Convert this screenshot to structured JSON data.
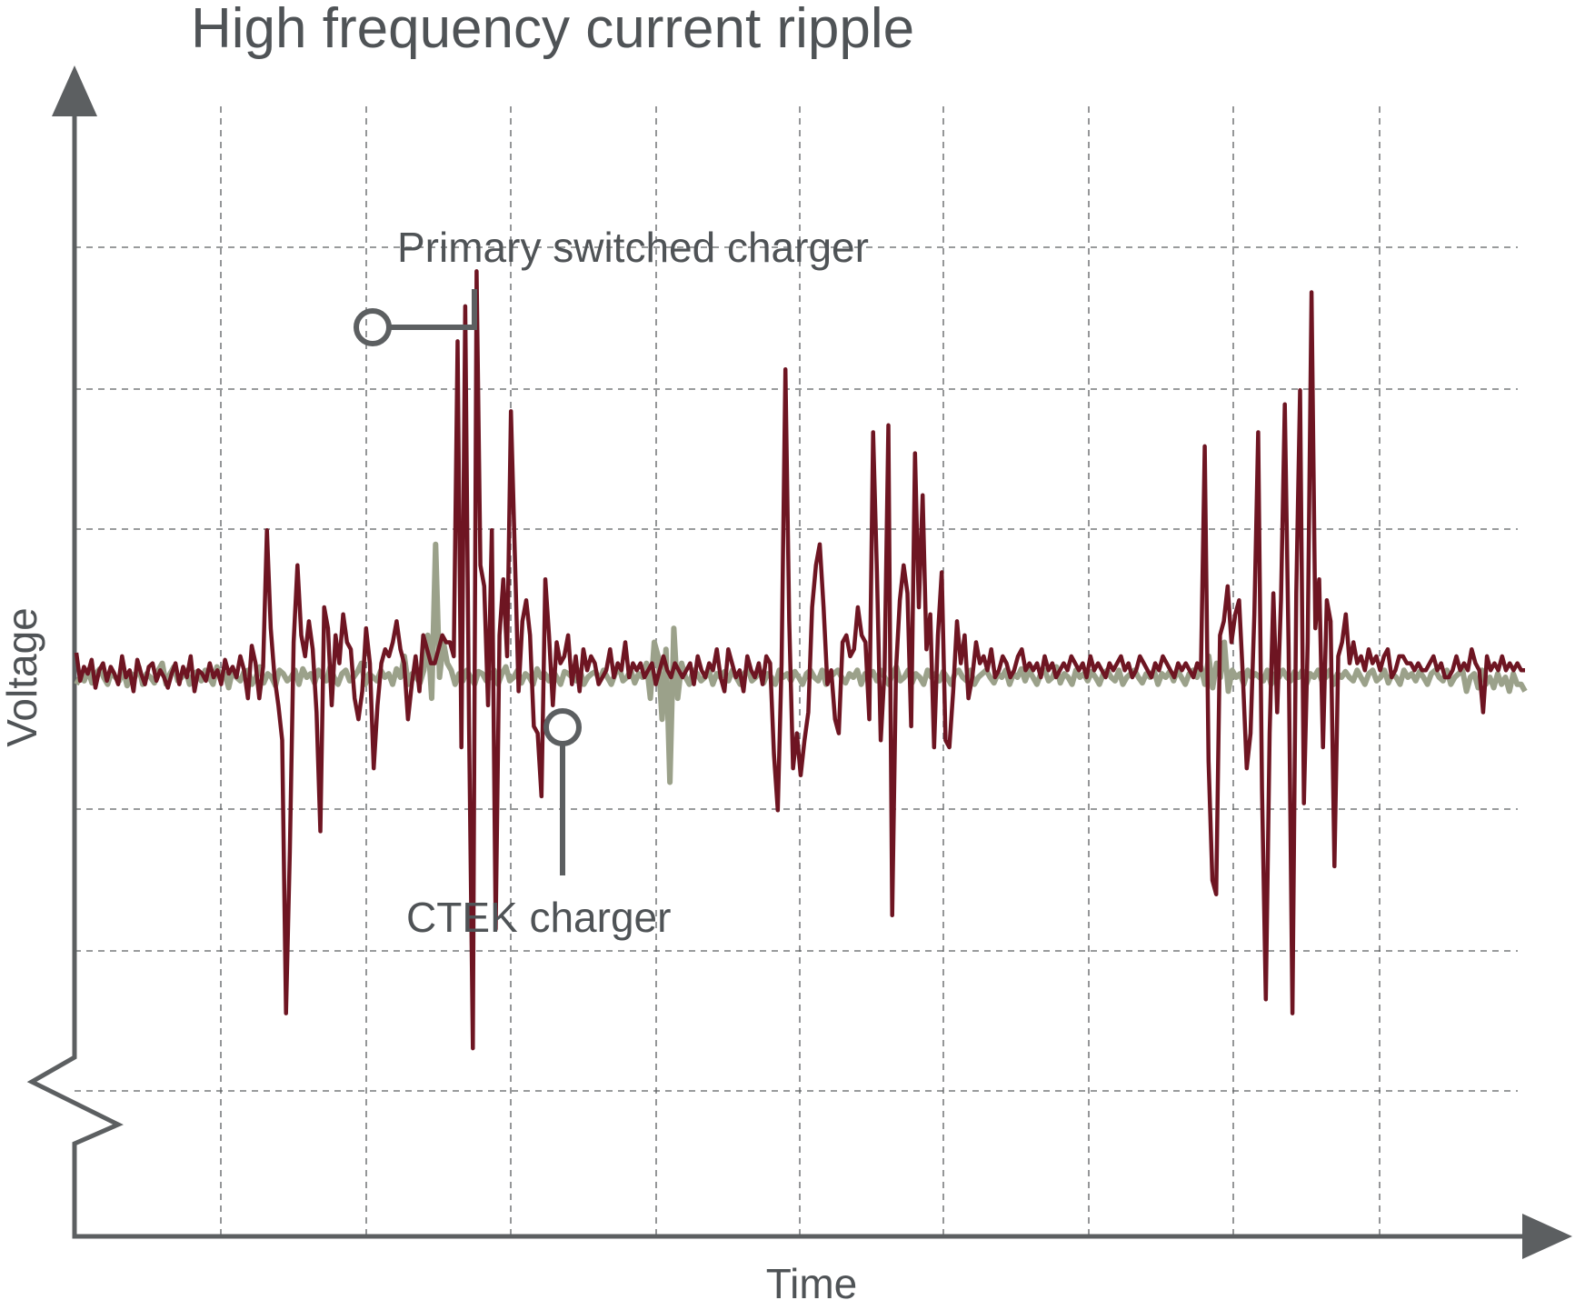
{
  "chart_data": {
    "type": "line",
    "title": "High frequency current ripple",
    "xlabel": "Time",
    "ylabel": "Voltage",
    "grid": true,
    "axis_break": "y-axis",
    "legend": "none",
    "annotations": [
      "Primary switched charger",
      "CTEK charger"
    ],
    "series": [
      {
        "name": "Primary switched charger",
        "color": "#6e1522",
        "values": [
          0.35,
          -0.05,
          0.15,
          0.05,
          0.25,
          -0.15,
          0.1,
          0.2,
          -0.05,
          0.15,
          0.05,
          -0.1,
          0.3,
          0.0,
          0.1,
          -0.2,
          0.25,
          0.05,
          -0.1,
          0.15,
          0.2,
          -0.05,
          0.1,
          0.0,
          -0.15,
          0.05,
          0.2,
          -0.1,
          0.15,
          0.0,
          0.3,
          -0.2,
          0.1,
          0.05,
          -0.05,
          0.2,
          0.0,
          0.1,
          -0.1,
          0.25,
          0.05,
          0.15,
          0.0,
          0.3,
          0.1,
          -0.3,
          0.45,
          0.2,
          -0.3,
          0.15,
          2.1,
          0.7,
          0.0,
          -0.4,
          -0.9,
          -4.8,
          -2.5,
          0.5,
          1.6,
          0.6,
          0.3,
          0.8,
          0.4,
          -0.5,
          -2.2,
          1.0,
          0.7,
          -0.4,
          0.6,
          0.2,
          0.9,
          0.5,
          0.4,
          -0.3,
          -0.6,
          -0.2,
          0.7,
          0.2,
          -1.3,
          -0.4,
          0.2,
          0.4,
          0.3,
          0.5,
          0.8,
          0.4,
          0.2,
          -0.6,
          -0.1,
          0.3,
          -0.2,
          0.6,
          0.4,
          0.2,
          0.2,
          0.4,
          0.6,
          0.5,
          0.5,
          0.3,
          4.8,
          -1.0,
          5.3,
          -0.7,
          -5.3,
          5.8,
          1.6,
          1.3,
          -0.4,
          2.1,
          -3.6,
          0.6,
          1.4,
          0.3,
          3.8,
          1.8,
          -0.2,
          0.8,
          1.1,
          0.6,
          -0.7,
          -0.8,
          -1.7,
          1.4,
          0.6,
          -0.4,
          0.5,
          0.2,
          0.3,
          0.6,
          -0.1,
          0.3,
          -0.2,
          0.4,
          0.1,
          0.3,
          0.2,
          -0.1,
          0.0,
          0.1,
          0.4,
          0.0,
          0.2,
          0.1,
          0.5,
          0.0,
          0.2,
          0.1,
          0.2,
          0.0,
          0.1,
          0.2,
          -0.1,
          0.1,
          0.3,
          0.1,
          0.0,
          0.2,
          0.1,
          0.0,
          0.1,
          0.2,
          -0.1,
          0.3,
          0.1,
          0.0,
          0.2,
          0.1,
          0.4,
          0.0,
          -0.2,
          0.4,
          0.2,
          0.0,
          0.1,
          -0.2,
          0.3,
          0.1,
          0.0,
          0.2,
          -0.1,
          0.3,
          0.2,
          -1.1,
          -1.9,
          0.2,
          4.4,
          0.8,
          -1.3,
          -0.8,
          -1.4,
          -0.9,
          -0.5,
          1.0,
          1.6,
          1.9,
          1.0,
          -0.1,
          0.1,
          -0.6,
          -0.8,
          0.5,
          0.6,
          0.3,
          0.4,
          1.0,
          0.6,
          0.5,
          -0.6,
          3.5,
          1.5,
          -0.9,
          0.1,
          3.6,
          -3.4,
          0.1,
          1.1,
          1.6,
          1.2,
          -0.7,
          3.2,
          1.0,
          2.6,
          0.4,
          0.9,
          -1.0,
          0.6,
          1.5,
          -0.9,
          -1.0,
          -0.2,
          0.8,
          0.2,
          0.6,
          -0.3,
          0.0,
          0.5,
          0.2,
          0.3,
          0.1,
          0.4,
          0.0,
          0.1,
          0.3,
          0.2,
          0.0,
          0.1,
          0.3,
          0.4,
          0.1,
          0.2,
          0.1,
          0.2,
          0.0,
          0.3,
          0.1,
          0.2,
          0.0,
          0.1,
          0.2,
          0.1,
          0.3,
          0.2,
          0.1,
          0.2,
          0.0,
          0.3,
          0.1,
          0.2,
          0.1,
          0.0,
          0.2,
          0.1,
          0.2,
          0.3,
          0.1,
          0.2,
          0.0,
          0.1,
          0.3,
          0.2,
          0.1,
          0.0,
          0.2,
          0.1,
          0.3,
          0.2,
          0.1,
          0.0,
          0.2,
          0.1,
          0.2,
          0.1,
          0.0,
          0.2,
          0.1,
          3.3,
          -1.2,
          -2.9,
          -3.1,
          0.6,
          0.8,
          1.3,
          0.5,
          0.9,
          1.1,
          0.0,
          -1.3,
          -0.8,
          0.9,
          3.5,
          -1.6,
          -4.6,
          -0.8,
          1.2,
          -0.5,
          1.1,
          3.9,
          0.4,
          -4.8,
          1.2,
          4.1,
          -1.8,
          0.5,
          5.5,
          0.7,
          1.4,
          -1.0,
          1.1,
          0.8,
          -2.7,
          0.3,
          0.5,
          0.9,
          0.2,
          0.5,
          0.2,
          0.3,
          0.1,
          0.4,
          0.2,
          0.3,
          0.1,
          0.3,
          0.4,
          0.0,
          0.1,
          0.3,
          0.3,
          0.2,
          0.2,
          0.1,
          0.2,
          0.1,
          0.1,
          0.2,
          0.3,
          0.1,
          0.2,
          0.0,
          0.0,
          0.1,
          0.3,
          0.1,
          0.2,
          0.1,
          0.4,
          0.2,
          0.1,
          -0.5,
          0.3,
          0.1,
          0.2,
          0.1,
          0.3,
          0.1,
          0.2,
          0.1,
          0.2,
          0.1,
          0.1
        ]
      },
      {
        "name": "CTEK charger",
        "color": "#9ba18a",
        "values": [
          -0.1,
          0.0,
          -0.05,
          0.1,
          -0.08,
          0.05,
          0.12,
          0.0,
          -0.1,
          0.08,
          0.0,
          -0.05,
          0.1,
          -0.12,
          0.05,
          0.0,
          0.15,
          -0.1,
          0.05,
          0.0,
          -0.08,
          0.1,
          0.2,
          -0.1,
          0.05,
          0.15,
          -0.05,
          0.0,
          0.1,
          -0.1,
          0.05,
          0.08,
          -0.05,
          0.1,
          0.0,
          -0.1,
          0.15,
          0.0,
          0.05,
          -0.15,
          0.1,
          0.0,
          -0.05,
          0.08,
          0.1,
          -0.1,
          0.0,
          0.15,
          -0.08,
          0.05,
          0.0,
          -0.12,
          0.1,
          0.05,
          -0.05,
          0.0,
          0.1,
          -0.1,
          0.12,
          0.0,
          0.05,
          -0.08,
          0.1,
          0.0,
          -0.05,
          0.15,
          0.0,
          -0.1,
          0.05,
          0.1,
          -0.05,
          0.0,
          0.08,
          0.2,
          -0.1,
          0.05,
          0.0,
          -0.05,
          0.1,
          0.0,
          0.05,
          -0.1,
          0.12,
          0.0,
          0.3,
          -0.1,
          0.05,
          0.0,
          -0.08,
          0.1,
          0.6,
          -0.3,
          1.9,
          0.0,
          0.5,
          0.2,
          0.1,
          -0.1,
          0.05,
          -0.05,
          0.1,
          0.0,
          -0.1,
          0.08,
          0.05,
          -0.05,
          0.0,
          0.1,
          -0.1,
          0.05,
          0.15,
          -0.05,
          0.0,
          0.1,
          -0.08,
          0.05,
          0.0,
          -0.1,
          0.12,
          0.0,
          0.05,
          -0.05,
          0.1,
          0.0,
          -0.1,
          0.08,
          0.05,
          0.0,
          -0.05,
          0.1,
          -0.1,
          0.0,
          0.05,
          0.08,
          -0.05,
          0.1,
          0.0,
          -0.1,
          0.05,
          0.15,
          -0.05,
          0.0,
          0.1,
          -0.08,
          0.05,
          0.0,
          0.2,
          -0.3,
          0.5,
          0.3,
          -0.6,
          0.4,
          -1.5,
          0.7,
          -0.3,
          0.2,
          0.0,
          -0.1,
          0.1,
          0.05,
          -0.05,
          0.0,
          0.1,
          -0.1,
          0.05,
          0.0,
          0.08,
          -0.05,
          0.1,
          0.0,
          -0.1,
          0.05,
          0.12,
          -0.05,
          0.0,
          0.1,
          -0.08,
          0.05,
          0.0,
          -0.1,
          0.1,
          0.0,
          0.05,
          -0.05,
          0.08,
          0.0,
          -0.1,
          0.05,
          0.1,
          0.0,
          -0.05,
          0.1,
          -0.1,
          0.0,
          0.05,
          0.1,
          0.0,
          -0.08,
          0.05,
          0.0,
          0.1,
          -0.1,
          0.05,
          0.0,
          0.08,
          -0.05,
          0.1,
          0.0,
          -0.1,
          0.05,
          0.15,
          -0.05,
          0.0,
          0.1,
          -0.08,
          0.05,
          0.0,
          -0.1,
          0.1,
          0.0,
          0.05,
          -0.05,
          0.08,
          0.0,
          -0.1,
          0.05,
          0.1,
          0.0,
          -0.05,
          0.1,
          -0.1,
          0.0,
          0.05,
          0.1,
          0.0,
          -0.08,
          0.05,
          0.0,
          0.1,
          -0.1,
          0.05,
          0.0,
          0.12,
          -0.05,
          0.1,
          0.0,
          -0.1,
          0.05,
          0.1,
          -0.05,
          0.0,
          0.15,
          -0.08,
          0.05,
          0.0,
          -0.1,
          0.1,
          0.0,
          0.05,
          -0.05,
          0.08,
          0.0,
          -0.1,
          0.05,
          0.1,
          0.0,
          -0.05,
          0.1,
          -0.1,
          0.0,
          0.05,
          0.1,
          0.0,
          -0.08,
          0.05,
          0.0,
          0.1,
          -0.1,
          0.05,
          0.0,
          0.08,
          -0.05,
          0.1,
          0.0,
          -0.1,
          0.05,
          0.1,
          0.0,
          0.15,
          -0.1,
          0.3,
          -0.15,
          0.2,
          0.0,
          0.5,
          -0.2,
          0.1,
          0.0,
          0.05,
          -0.1,
          0.1,
          0.0,
          0.05,
          0.0,
          -0.05,
          0.1,
          -0.1,
          0.05,
          0.0,
          0.1,
          0.0,
          -0.05,
          0.08,
          0.0,
          0.1,
          -0.1,
          0.05,
          0.0,
          0.1,
          -0.05,
          0.0,
          0.1,
          -0.1,
          0.05,
          0.0,
          0.08,
          0.0,
          -0.05,
          0.1,
          0.0,
          -0.1,
          0.05,
          0.1,
          -0.05,
          0.0,
          0.1,
          -0.08,
          0.05,
          0.0,
          -0.1,
          0.1,
          0.0,
          0.05,
          -0.05,
          0.08,
          0.0,
          -0.1,
          0.05,
          0.1,
          0.0,
          -0.05,
          0.1,
          -0.1,
          0.0,
          0.05,
          0.1,
          -0.2,
          0.0,
          0.05,
          -0.15,
          0.1,
          -0.1,
          0.0,
          -0.15,
          0.05,
          -0.1,
          0.0,
          -0.2,
          0.05,
          -0.1,
          -0.1,
          -0.2
        ]
      }
    ]
  }
}
